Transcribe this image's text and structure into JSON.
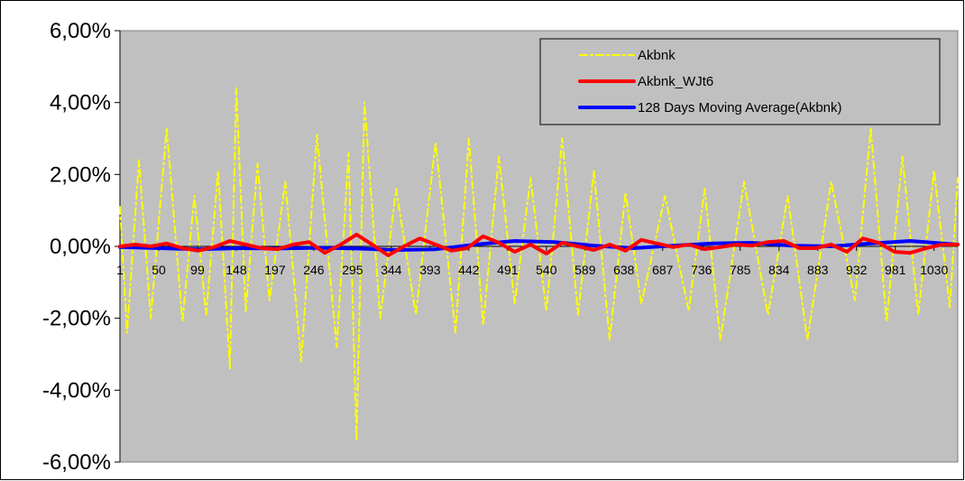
{
  "chart_data": {
    "type": "line",
    "title": "",
    "xlabel": "",
    "ylabel": "",
    "x_range": [
      1,
      1060
    ],
    "x_tick_labels": [
      "1",
      "50",
      "99",
      "148",
      "197",
      "246",
      "295",
      "344",
      "393",
      "442",
      "491",
      "540",
      "589",
      "638",
      "687",
      "736",
      "785",
      "834",
      "883",
      "932",
      "981",
      "1030"
    ],
    "y_tick_labels": [
      "6,00%",
      "4,00%",
      "2,00%",
      "0,00%",
      "-2,00%",
      "-4,00%",
      "-6,00%"
    ],
    "ylim": [
      -6,
      6
    ],
    "y_unit": "%",
    "grid": false,
    "plot_background": "#c0c0c0",
    "legend_position": "top-right",
    "series": [
      {
        "name": "Akbnk",
        "color": "#ffff00",
        "style": "dash-dot",
        "description_values_note": "daily returns, approx range -5.5% to 4.5%",
        "x": [
          1,
          10,
          25,
          40,
          60,
          80,
          95,
          110,
          125,
          140,
          148,
          160,
          175,
          190,
          210,
          230,
          250,
          275,
          290,
          300,
          310,
          330,
          350,
          375,
          400,
          425,
          442,
          460,
          480,
          500,
          520,
          540,
          560,
          580,
          600,
          620,
          640,
          660,
          690,
          720,
          740,
          760,
          790,
          820,
          845,
          870,
          900,
          930,
          950,
          970,
          990,
          1010,
          1030,
          1050,
          1060
        ],
        "values": [
          1.1,
          -2.4,
          2.4,
          -2.0,
          3.3,
          -2.1,
          1.4,
          -1.9,
          2.1,
          -3.4,
          4.4,
          -1.8,
          2.3,
          -1.5,
          1.8,
          -3.2,
          3.1,
          -2.8,
          2.6,
          -5.4,
          4.0,
          -2.0,
          1.6,
          -1.9,
          2.9,
          -2.4,
          3.0,
          -2.2,
          2.5,
          -1.6,
          1.9,
          -1.8,
          3.0,
          -1.9,
          2.1,
          -2.6,
          1.5,
          -1.6,
          1.4,
          -1.8,
          1.6,
          -2.6,
          1.8,
          -1.9,
          1.4,
          -2.6,
          1.8,
          -1.5,
          3.3,
          -2.1,
          2.5,
          -1.9,
          2.1,
          -1.7,
          1.9
        ]
      },
      {
        "name": "Akbnk_WJt6",
        "color": "#ff0000",
        "style": "solid",
        "x": [
          1,
          20,
          40,
          60,
          80,
          100,
          120,
          140,
          160,
          180,
          200,
          220,
          240,
          260,
          280,
          300,
          320,
          340,
          360,
          380,
          400,
          420,
          440,
          460,
          480,
          500,
          520,
          540,
          560,
          580,
          600,
          620,
          640,
          660,
          680,
          700,
          720,
          740,
          760,
          780,
          800,
          820,
          840,
          860,
          880,
          900,
          920,
          940,
          960,
          980,
          1000,
          1020,
          1040,
          1060
        ],
        "values": [
          0.0,
          0.05,
          0.0,
          0.08,
          -0.05,
          -0.12,
          -0.02,
          0.15,
          0.05,
          -0.05,
          -0.08,
          0.05,
          0.12,
          -0.18,
          0.05,
          0.33,
          0.05,
          -0.25,
          0.0,
          0.22,
          0.05,
          -0.12,
          -0.05,
          0.28,
          0.1,
          -0.15,
          0.05,
          -0.2,
          0.1,
          0.0,
          -0.1,
          0.05,
          -0.12,
          0.18,
          0.08,
          -0.02,
          0.05,
          -0.08,
          -0.02,
          0.05,
          0.02,
          0.12,
          0.15,
          -0.05,
          -0.05,
          0.05,
          -0.15,
          0.22,
          0.1,
          -0.15,
          -0.18,
          -0.05,
          0.05,
          0.05
        ]
      },
      {
        "name": "128 Days Moving Average(Akbnk)",
        "color": "#0000ff",
        "style": "solid",
        "x": [
          1,
          50,
          100,
          150,
          200,
          250,
          300,
          350,
          400,
          450,
          500,
          550,
          600,
          650,
          700,
          750,
          800,
          850,
          900,
          950,
          1000,
          1060
        ],
        "values": [
          -0.02,
          -0.05,
          -0.08,
          -0.05,
          -0.06,
          -0.04,
          -0.06,
          -0.1,
          -0.08,
          0.05,
          0.15,
          0.12,
          0.02,
          -0.05,
          0.02,
          0.08,
          0.1,
          0.02,
          0.0,
          0.08,
          0.15,
          0.05
        ]
      }
    ]
  }
}
